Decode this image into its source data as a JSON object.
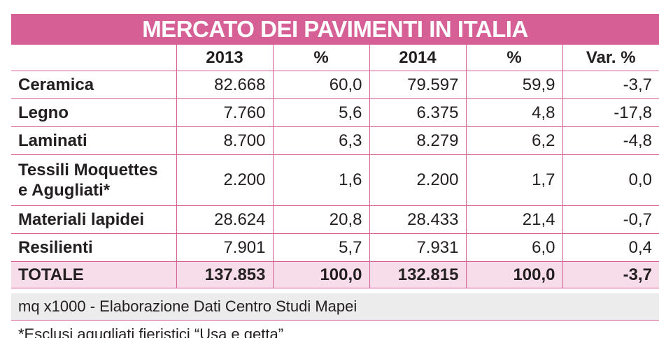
{
  "title": "MERCATO DEI PAVIMENTI IN ITALIA",
  "headers": [
    "",
    "2013",
    "%",
    "2014",
    "%",
    "Var. %"
  ],
  "rows": [
    {
      "label": "Ceramica",
      "v2013": "82.668",
      "p2013": "60,0",
      "v2014": "79.597",
      "p2014": "59,9",
      "var": "-3,7"
    },
    {
      "label": "Legno",
      "v2013": "7.760",
      "p2013": "5,6",
      "v2014": "6.375",
      "p2014": "4,8",
      "var": "-17,8"
    },
    {
      "label": "Laminati",
      "v2013": "8.700",
      "p2013": "6,3",
      "v2014": "8.279",
      "p2014": "6,2",
      "var": "-4,8"
    },
    {
      "label": "Tessili Moquettes e Agugliati*",
      "v2013": "2.200",
      "p2013": "1,6",
      "v2014": "2.200",
      "p2014": "1,7",
      "var": "0,0"
    },
    {
      "label": "Materiali lapidei",
      "v2013": "28.624",
      "p2013": "20,8",
      "v2014": "28.433",
      "p2014": "21,4",
      "var": "-0,7"
    },
    {
      "label": "Resilienti",
      "v2013": "7.901",
      "p2013": "5,7",
      "v2014": "7.931",
      "p2014": "6,0",
      "var": "0,4"
    }
  ],
  "total": {
    "label": "TOTALE",
    "v2013": "137.853",
    "p2013": "100,0",
    "v2014": "132.815",
    "p2014": "100,0",
    "var": "-3,7"
  },
  "notes": {
    "unit": "mq x1000 - Elaborazione Dati Centro Studi Mapei",
    "footnote": "*Esclusi agugliati fieristici “Usa e getta”"
  },
  "colors": {
    "accent": "#d65f95",
    "total_row": "#f6dde9",
    "note_bg": "#ececec"
  }
}
